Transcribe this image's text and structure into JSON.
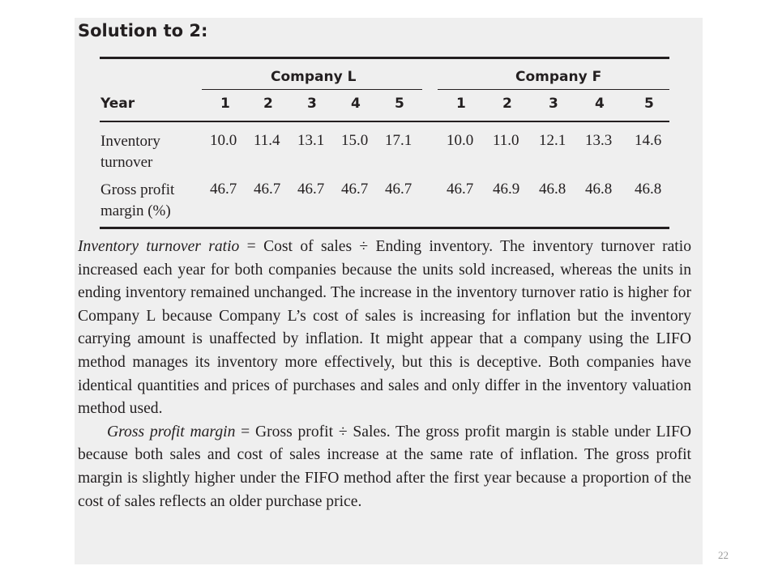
{
  "heading": "Solution to 2:",
  "table": {
    "group_headers": [
      "Company L",
      "Company F"
    ],
    "year_label": "Year",
    "years_l": [
      "1",
      "2",
      "3",
      "4",
      "5"
    ],
    "years_f": [
      "1",
      "2",
      "3",
      "4",
      "5"
    ],
    "rows": [
      {
        "label": "Inventory turnover",
        "company_l": [
          "10.0",
          "11.4",
          "13.1",
          "15.0",
          "17.1"
        ],
        "company_f": [
          "10.0",
          "11.0",
          "12.1",
          "13.3",
          "14.6"
        ]
      },
      {
        "label": "Gross profit margin (%)",
        "company_l": [
          "46.7",
          "46.7",
          "46.7",
          "46.7",
          "46.7"
        ],
        "company_f": [
          "46.7",
          "46.9",
          "46.8",
          "46.8",
          "46.8"
        ]
      }
    ]
  },
  "paragraph1": {
    "term": "Inventory turnover ratio",
    "body": " = Cost of sales ÷ Ending inventory. The inventory turnover ratio increased each year for both companies because the units sold increased, whereas the units in ending inventory remained unchanged. The increase in the inventory turnover ratio is higher for Company L because Company L’s cost of sales is increasing for inflation but the inventory carrying amount is unaffected by inflation. It might appear that a company using the LIFO method manages its inventory more effectively, but this is deceptive. Both companies have identical quantities and prices of purchases and sales and only differ in the inventory valuation method used."
  },
  "paragraph2": {
    "term": "Gross profit margin",
    "body": " = Gross profit ÷ Sales. The gross profit margin is stable under LIFO because both sales and cost of sales increase at the same rate of inflation. The gross profit margin is slightly higher under the FIFO method after the first year because a proportion of the cost of sales reflects an older purchase price."
  },
  "page_number": "22"
}
